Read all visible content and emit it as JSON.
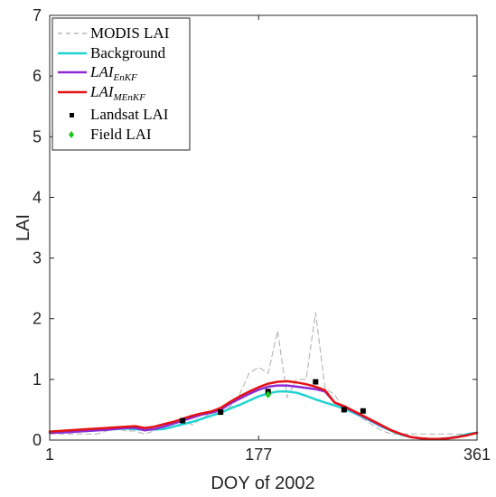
{
  "chart_data": {
    "type": "line",
    "xlabel": "DOY of 2002",
    "ylabel": "LAI",
    "xlim": [
      1,
      361
    ],
    "ylim": [
      0,
      7
    ],
    "x_ticks": [
      1,
      177,
      361
    ],
    "y_ticks": [
      0,
      1,
      2,
      3,
      4,
      5,
      6,
      7
    ],
    "grid": false,
    "legend_position": "top-left",
    "colors": {
      "modis": "#b9b9b9",
      "background": "#22d3d3",
      "enkf": "#8e2bd6",
      "menkf": "#e41212",
      "landsat": "#000000",
      "field": "#19c519"
    },
    "series": [
      {
        "name": "MODIS LAI",
        "style": "dashed",
        "x": [
          1,
          9,
          17,
          25,
          33,
          41,
          49,
          57,
          65,
          73,
          81,
          89,
          97,
          105,
          113,
          121,
          129,
          137,
          145,
          153,
          161,
          169,
          177,
          185,
          193,
          201,
          209,
          217,
          225,
          233,
          241,
          249,
          257,
          265,
          273,
          281,
          289,
          297,
          305,
          313,
          321,
          329,
          337,
          345,
          353,
          361
        ],
        "values": [
          0.1,
          0.1,
          0.1,
          0.1,
          0.1,
          0.1,
          0.15,
          0.2,
          0.15,
          0.15,
          0.1,
          0.15,
          0.2,
          0.3,
          0.35,
          0.25,
          0.35,
          0.45,
          0.45,
          0.55,
          0.75,
          1.1,
          1.2,
          1.1,
          1.8,
          0.7,
          1.0,
          1.0,
          2.1,
          0.85,
          0.75,
          0.5,
          0.45,
          0.35,
          0.25,
          0.15,
          0.1,
          0.1,
          0.1,
          0.1,
          0.1,
          0.1,
          0.1,
          0.1,
          0.1,
          0.1
        ]
      },
      {
        "name": "Background",
        "x": [
          1,
          17,
          33,
          49,
          65,
          81,
          97,
          105,
          113,
          121,
          129,
          137,
          145,
          153,
          161,
          169,
          177,
          185,
          193,
          201,
          209,
          217,
          225,
          233,
          241,
          249,
          257,
          265,
          273,
          281,
          289,
          297,
          305,
          313,
          321,
          329,
          337,
          345,
          353,
          361
        ],
        "values": [
          0.12,
          0.13,
          0.15,
          0.17,
          0.19,
          0.17,
          0.18,
          0.22,
          0.26,
          0.3,
          0.35,
          0.4,
          0.45,
          0.52,
          0.58,
          0.65,
          0.72,
          0.77,
          0.8,
          0.8,
          0.78,
          0.73,
          0.67,
          0.62,
          0.57,
          0.52,
          0.45,
          0.38,
          0.3,
          0.22,
          0.15,
          0.09,
          0.05,
          0.03,
          0.02,
          0.02,
          0.03,
          0.06,
          0.1,
          0.12
        ]
      },
      {
        "name": "LAI_EnKF",
        "label_main": "LAI",
        "label_sub": "EnKF",
        "x": [
          1,
          17,
          33,
          49,
          65,
          73,
          81,
          89,
          97,
          105,
          113,
          121,
          129,
          137,
          145,
          153,
          161,
          169,
          177,
          185,
          193,
          201,
          209,
          217,
          225,
          233,
          241,
          249,
          257,
          265,
          273,
          281,
          289,
          297,
          305,
          313,
          321,
          329,
          337,
          345,
          353,
          361
        ],
        "values": [
          0.12,
          0.13,
          0.15,
          0.17,
          0.2,
          0.2,
          0.16,
          0.18,
          0.22,
          0.27,
          0.32,
          0.37,
          0.42,
          0.45,
          0.5,
          0.6,
          0.68,
          0.76,
          0.83,
          0.88,
          0.9,
          0.9,
          0.88,
          0.86,
          0.84,
          0.8,
          0.62,
          0.55,
          0.47,
          0.39,
          0.31,
          0.23,
          0.16,
          0.1,
          0.05,
          0.03,
          0.02,
          0.02,
          0.03,
          0.05,
          0.08,
          0.12
        ]
      },
      {
        "name": "LAI_MEnKF",
        "label_main": "LAI",
        "label_sub": "MEnKF",
        "x": [
          1,
          17,
          33,
          49,
          65,
          73,
          81,
          89,
          97,
          105,
          113,
          121,
          129,
          137,
          145,
          153,
          161,
          169,
          177,
          185,
          193,
          201,
          209,
          217,
          225,
          233,
          241,
          249,
          257,
          265,
          273,
          281,
          289,
          297,
          305,
          313,
          321,
          329,
          337,
          345,
          353,
          361
        ],
        "values": [
          0.14,
          0.16,
          0.18,
          0.2,
          0.22,
          0.23,
          0.2,
          0.22,
          0.26,
          0.3,
          0.35,
          0.4,
          0.44,
          0.47,
          0.53,
          0.63,
          0.72,
          0.8,
          0.87,
          0.93,
          0.96,
          0.97,
          0.95,
          0.92,
          0.88,
          0.82,
          0.62,
          0.56,
          0.48,
          0.4,
          0.32,
          0.24,
          0.16,
          0.1,
          0.05,
          0.03,
          0.02,
          0.02,
          0.03,
          0.05,
          0.08,
          0.12
        ]
      },
      {
        "name": "Landsat LAI",
        "marker": "square",
        "x": [
          113,
          145,
          185,
          225,
          249,
          265
        ],
        "values": [
          0.32,
          0.46,
          0.8,
          0.96,
          0.5,
          0.48
        ]
      },
      {
        "name": "Field LAI",
        "marker": "diamond",
        "x": [
          185
        ],
        "values": [
          0.75
        ]
      }
    ]
  }
}
